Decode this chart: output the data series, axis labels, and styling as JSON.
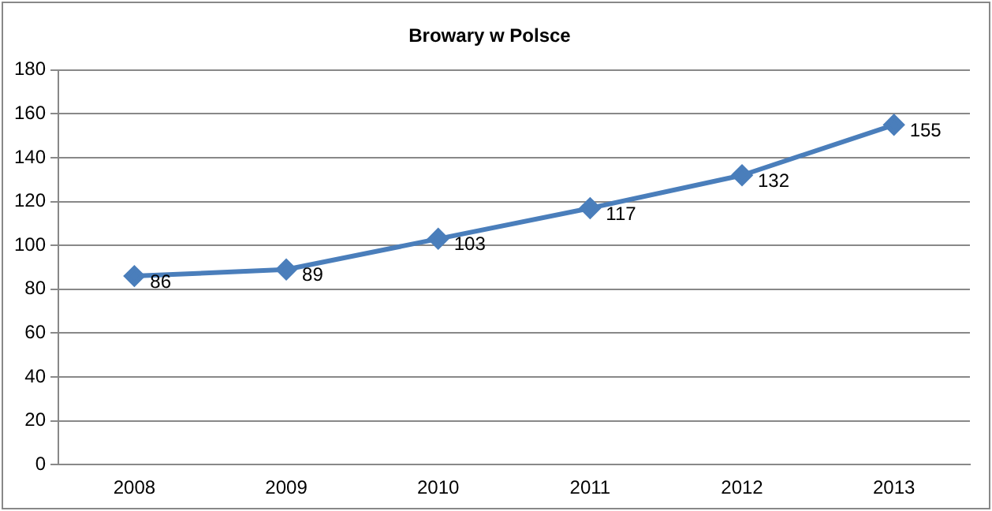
{
  "chart_data": {
    "type": "line",
    "title": "Browary w Polsce",
    "categories": [
      "2008",
      "2009",
      "2010",
      "2011",
      "2012",
      "2013"
    ],
    "series": [
      {
        "color": "#4a7ebb",
        "values": [
          86,
          89,
          103,
          117,
          132,
          155
        ]
      }
    ],
    "ylim": [
      0,
      180
    ],
    "yticks": [
      0,
      20,
      40,
      60,
      80,
      100,
      120,
      140,
      160,
      180
    ],
    "grid": "y",
    "legend": false,
    "marker": "diamond",
    "line_style": "solid",
    "data_labels": true
  }
}
